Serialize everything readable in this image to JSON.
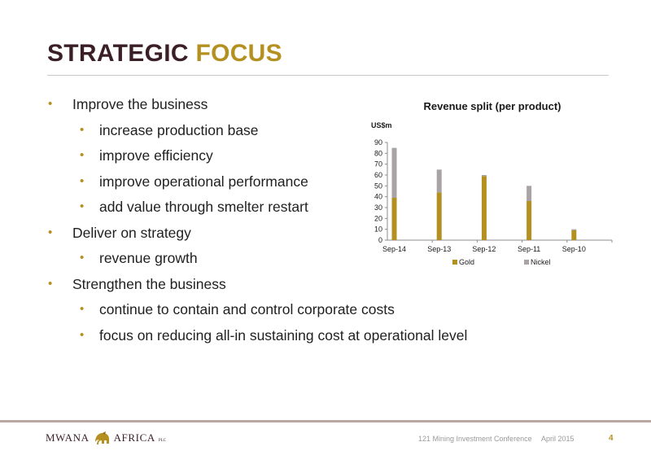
{
  "title": {
    "word1": "STRATEGIC",
    "word2": "FOCUS"
  },
  "bullets": [
    {
      "level": 1,
      "text": "Improve the business"
    },
    {
      "level": 2,
      "text": "increase production base"
    },
    {
      "level": 2,
      "text": "improve efficiency"
    },
    {
      "level": 2,
      "text": "improve operational performance"
    },
    {
      "level": 2,
      "text": "add value through smelter restart"
    },
    {
      "level": 1,
      "text": "Deliver on strategy"
    },
    {
      "level": 2,
      "text": "revenue growth"
    },
    {
      "level": 1,
      "text": "Strengthen the business"
    },
    {
      "level": 2,
      "text": "continue to contain and control corporate costs"
    },
    {
      "level": 2,
      "text": "focus on reducing all-in sustaining cost at operational level"
    }
  ],
  "bullet_glyph": "•",
  "colors": {
    "accent": "#b3901f",
    "dark": "#3b1f26",
    "gold": "#b3901f",
    "nickel": "#a9a3a6"
  },
  "chart_data": {
    "type": "bar",
    "stacked": true,
    "title": "Revenue split (per product)",
    "ylabel": "US$m",
    "categories": [
      "Sep-14",
      "Sep-13",
      "Sep-12",
      "Sep-11",
      "Sep-10"
    ],
    "series": [
      {
        "name": "Gold",
        "color": "#b3901f",
        "values": [
          39,
          44,
          59,
          36,
          9
        ]
      },
      {
        "name": "Nickel",
        "color": "#a9a3a6",
        "values": [
          46,
          21,
          1,
          14,
          1
        ]
      }
    ],
    "ylim": [
      0,
      90
    ],
    "yticks": [
      0,
      10,
      20,
      30,
      40,
      50,
      60,
      70,
      80,
      90
    ],
    "grid": false,
    "legend": "bottom"
  },
  "footer": {
    "logo_text": "MWANA",
    "logo_text2": "AFRICA",
    "logo_suffix": "PLC",
    "conference": "121 Mining Investment Conference",
    "date": "April 2015",
    "page": "4"
  }
}
